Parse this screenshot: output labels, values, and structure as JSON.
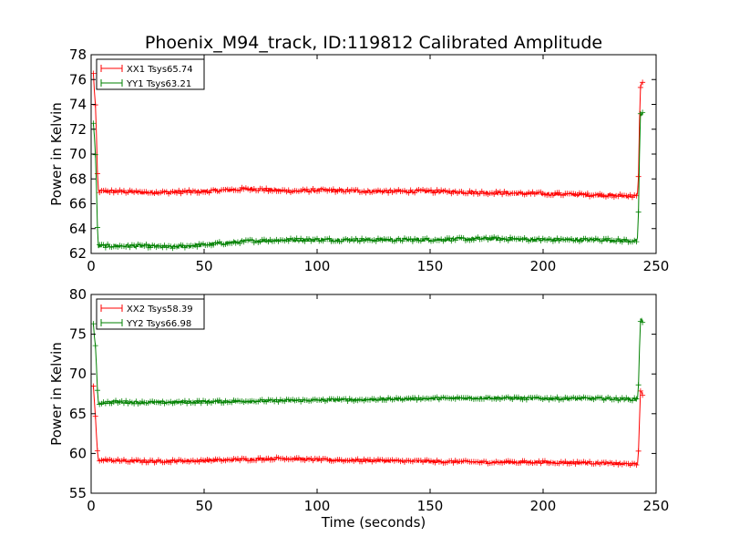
{
  "chart_data": [
    {
      "type": "line",
      "title": "Phoenix_M94_track, ID:119812 Calibrated Amplitude",
      "xlabel": "",
      "ylabel": "Power in Kelvin",
      "xlim": [
        0,
        250
      ],
      "ylim": [
        62,
        78
      ],
      "xticks": [
        0,
        50,
        100,
        150,
        200,
        250
      ],
      "yticks": [
        62,
        64,
        66,
        68,
        70,
        72,
        74,
        76,
        78
      ],
      "grid": false,
      "legend_position": "top-left",
      "series": [
        {
          "name": "XX1 Tsys65.74",
          "color": "#ff0000",
          "x": [
            1,
            2,
            3,
            10,
            25,
            50,
            70,
            90,
            100,
            125,
            150,
            175,
            200,
            225,
            242,
            243,
            244
          ],
          "y": [
            76.4,
            73.6,
            67.0,
            67.0,
            66.9,
            67.0,
            67.2,
            67.0,
            67.1,
            67.0,
            67.0,
            66.9,
            66.8,
            66.7,
            66.6,
            75.6,
            75.6
          ]
        },
        {
          "name": "YY1 Tsys63.21",
          "color": "#008000",
          "x": [
            1,
            2,
            3,
            10,
            25,
            35,
            50,
            70,
            90,
            100,
            125,
            150,
            175,
            200,
            225,
            242,
            243,
            244
          ],
          "y": [
            72.7,
            69.7,
            62.6,
            62.6,
            62.6,
            62.5,
            62.7,
            63.0,
            63.1,
            63.1,
            63.1,
            63.1,
            63.2,
            63.1,
            63.1,
            63.0,
            73.3,
            73.2
          ]
        }
      ]
    },
    {
      "type": "line",
      "title": "",
      "xlabel": "Time (seconds)",
      "ylabel": "Power in Kelvin",
      "xlim": [
        0,
        250
      ],
      "ylim": [
        55,
        80
      ],
      "xticks": [
        0,
        50,
        100,
        150,
        200,
        250
      ],
      "yticks": [
        55,
        60,
        65,
        70,
        75,
        80
      ],
      "grid": false,
      "legend_position": "top-left",
      "series": [
        {
          "name": "XX2 Tsys58.39",
          "color": "#ff0000",
          "x": [
            1,
            2,
            3,
            10,
            25,
            50,
            75,
            85,
            100,
            125,
            150,
            175,
            200,
            225,
            242,
            243,
            244
          ],
          "y": [
            68.5,
            64.0,
            59.2,
            59.1,
            59.0,
            59.1,
            59.3,
            59.4,
            59.2,
            59.1,
            59.0,
            58.9,
            58.9,
            58.8,
            58.6,
            67.6,
            67.6
          ]
        },
        {
          "name": "YY2 Tsys66.98",
          "color": "#008000",
          "x": [
            1,
            2,
            3,
            10,
            25,
            50,
            75,
            100,
            125,
            150,
            175,
            200,
            225,
            242,
            243,
            244
          ],
          "y": [
            76.2,
            73.2,
            66.3,
            66.5,
            66.4,
            66.5,
            66.6,
            66.7,
            66.8,
            66.9,
            67.0,
            66.9,
            66.9,
            66.8,
            76.8,
            76.7
          ]
        }
      ]
    }
  ]
}
